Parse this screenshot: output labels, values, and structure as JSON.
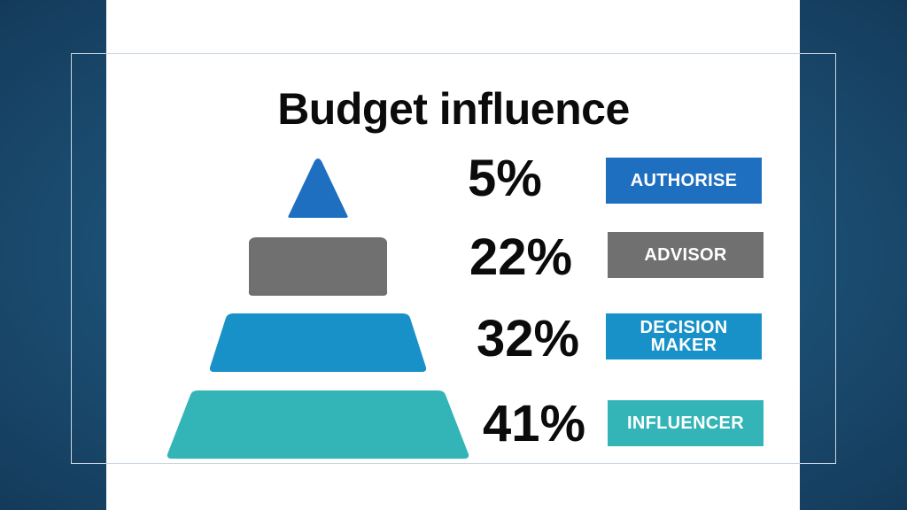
{
  "chart_data": {
    "type": "bar",
    "title": "Budget influence",
    "categories": [
      "AUTHORISE",
      "ADVISOR",
      "DECISION MAKER",
      "INFLUENCER"
    ],
    "values": [
      5,
      22,
      32,
      41
    ],
    "value_labels": [
      "5%",
      "22%",
      "32%",
      "41%"
    ],
    "unit": "%",
    "colors": [
      "#1f6fc1",
      "#707070",
      "#1791c8",
      "#33b5b8"
    ]
  }
}
